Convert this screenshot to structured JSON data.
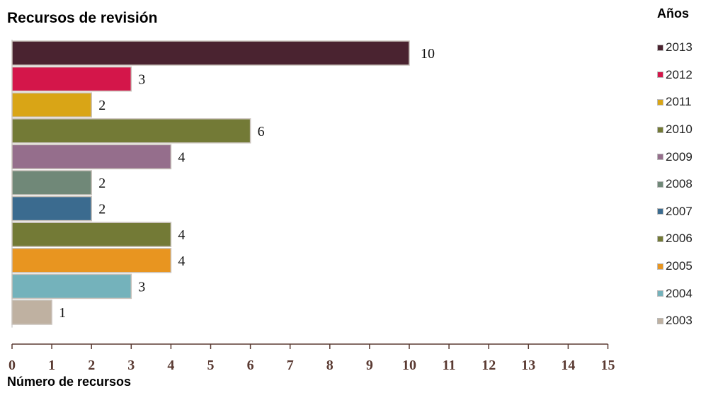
{
  "title": "Recursos de revisión",
  "legend_title": "Años",
  "chart_data": {
    "type": "bar",
    "orientation": "horizontal",
    "title": "Recursos de revisión",
    "xlabel": "Número de recursos",
    "ylabel": "",
    "legend_title": "Años",
    "legend_position": "right",
    "xlim": [
      0,
      15
    ],
    "xticks": [
      0,
      1,
      2,
      3,
      4,
      5,
      6,
      7,
      8,
      9,
      10,
      11,
      12,
      13,
      14,
      15
    ],
    "categories": [
      "2013",
      "2012",
      "2011",
      "2010",
      "2009",
      "2008",
      "2007",
      "2006",
      "2005",
      "2004",
      "2003"
    ],
    "values": [
      10,
      3,
      2,
      6,
      4,
      2,
      2,
      4,
      4,
      3,
      1
    ],
    "colors": [
      "#4a2330",
      "#d4164a",
      "#d9a516",
      "#737a36",
      "#956e8c",
      "#708878",
      "#3b6b8f",
      "#737a36",
      "#e89520",
      "#74b2bb",
      "#bfb1a1"
    ],
    "grid": false
  }
}
